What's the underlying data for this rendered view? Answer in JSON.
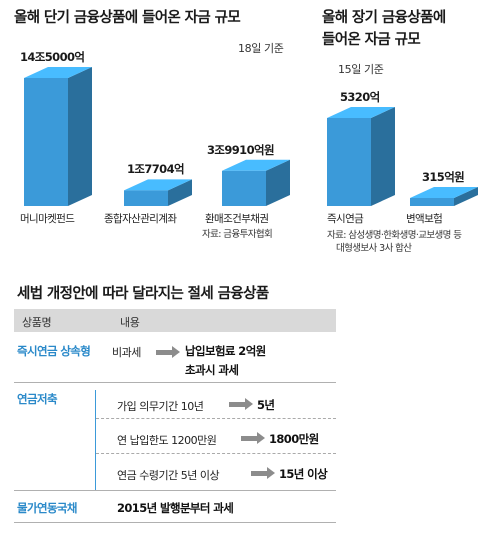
{
  "chart_data": [
    {
      "type": "bar",
      "title": "올해 단기 금융상품에 들어온 자금 규모",
      "subtitle": "18일 기준",
      "categories": [
        "머니마켓펀드",
        "종합자산관리계좌",
        "환매조건부채권"
      ],
      "values": [
        145000,
        17704,
        39910
      ],
      "value_labels": [
        "14조5000억",
        "1조7704억",
        "3조9910억원"
      ],
      "source": "자료: 금융투자협회",
      "color": "#3b9ad9"
    },
    {
      "type": "bar",
      "title_lines": [
        "올해 장기 금융상품에",
        "들어온 자금 규모"
      ],
      "subtitle": "15일 기준",
      "categories": [
        "즉시연금",
        "변액보험"
      ],
      "values": [
        5320,
        315
      ],
      "value_labels": [
        "5320억",
        "315억원"
      ],
      "source_lines": [
        "자료: 삼성생명·한화생명·교보생명 등",
        "대형생보사 3사 합산"
      ],
      "color": "#3b9ad9"
    }
  ],
  "table": {
    "title": "세법 개정안에 따라 달라지는 절세 금융상품",
    "headers": [
      "상품명",
      "내용"
    ],
    "rows": [
      {
        "name": "즉시연금 상속형",
        "from": "비과세",
        "to_line1": "납입보험료 2억원",
        "to_line2": "초과시 과세"
      },
      {
        "name": "연금저축",
        "changes": [
          {
            "from": "가입 의무기간 10년",
            "to": "5년"
          },
          {
            "from": "연 납입한도 1200만원",
            "to": "1800만원"
          },
          {
            "from": "연금 수령기간 5년 이상",
            "to": "15년 이상"
          }
        ]
      },
      {
        "name": "물가연동국채",
        "text": "2015년 발행분부터 과세"
      }
    ]
  },
  "colors": {
    "accent": "#2a89c9",
    "bar_front": "#3b9ad9",
    "header_bg": "#d9d9d9",
    "arrow": "#8c8c8c"
  }
}
